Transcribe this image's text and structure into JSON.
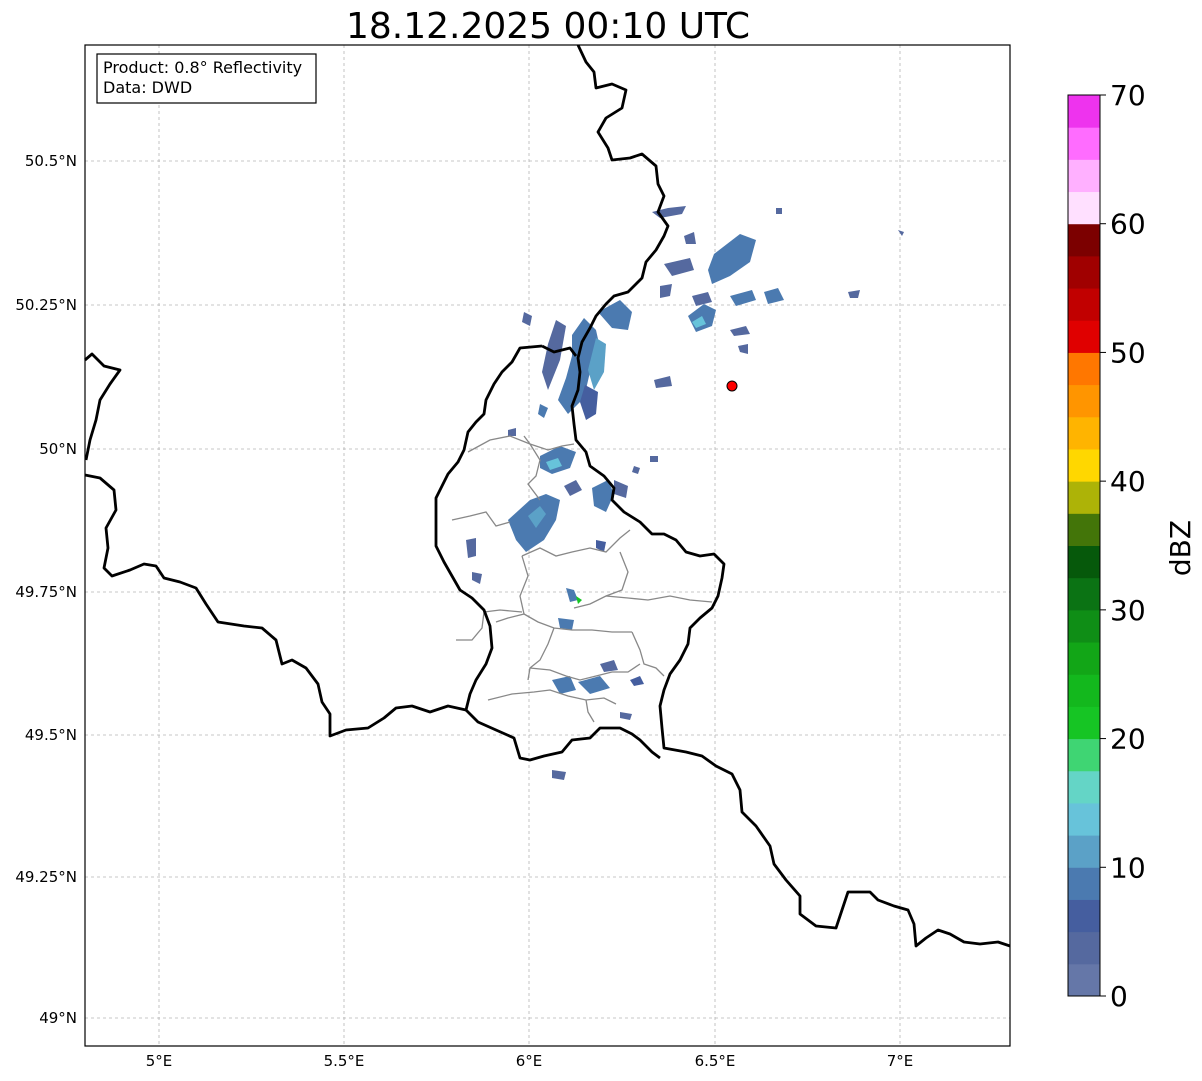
{
  "title": "18.12.2025 00:10 UTC",
  "info": {
    "product": "Product: 0.8° Reflectivity",
    "data": "Data: DWD"
  },
  "axes": {
    "lon_ticks": [
      "5°E",
      "5.5°E",
      "6°E",
      "6.5°E",
      "7°E"
    ],
    "lat_ticks": [
      "50.5°N",
      "50.25°N",
      "50°N",
      "49.75°N",
      "49.5°N",
      "49.25°N",
      "49°N"
    ]
  },
  "colorbar": {
    "label": "dBZ",
    "tick_labels": [
      "0",
      "10",
      "20",
      "30",
      "40",
      "50",
      "60",
      "70"
    ],
    "colors": [
      "#6577a8",
      "#55699f",
      "#455e9f",
      "#4b7ab0",
      "#5ba1c7",
      "#67c3da",
      "#64d5c6",
      "#3fd573",
      "#16c524",
      "#13b81d",
      "#12a617",
      "#0f8e16",
      "#0b7314",
      "#06590b",
      "#437509",
      "#adb307",
      "#ffd700",
      "#ffb400",
      "#ff9500",
      "#ff7700",
      "#e00000",
      "#c10000",
      "#a00000",
      "#7c0000",
      "#ffe0ff",
      "#ffb0ff",
      "#ff6cff",
      "#ee33ee"
    ]
  },
  "radar_site_label": "radar-site"
}
